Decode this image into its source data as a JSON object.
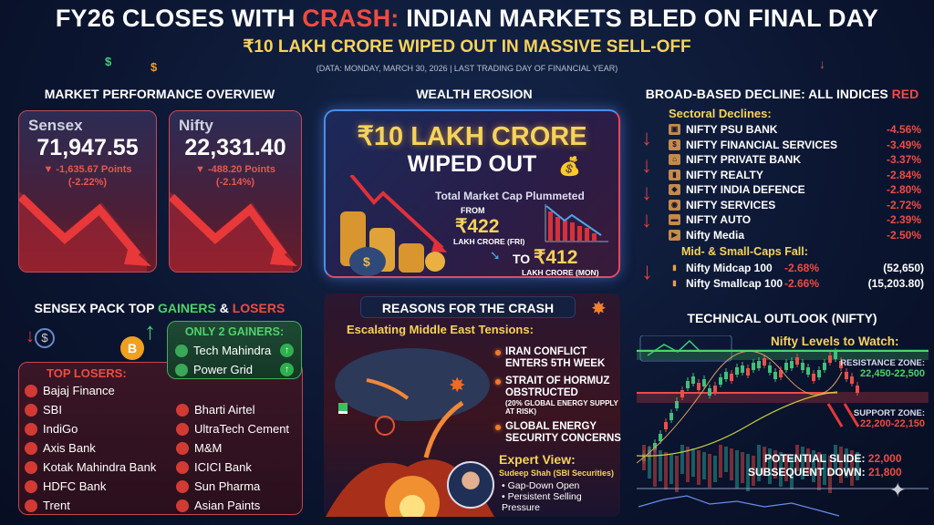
{
  "header": {
    "title_pre": "FY26 CLOSES WITH ",
    "title_hl": "CRASH:",
    "title_post": " INDIAN MARKETS BLED ON FINAL DAY",
    "subtitle": "₹10 LAKH CRORE WIPED OUT IN MASSIVE SELL-OFF",
    "note": "(DATA: MONDAY, MARCH 30, 2026 | LAST TRADING DAY OF FINANCIAL YEAR)"
  },
  "market": {
    "heading": "MARKET PERFORMANCE OVERVIEW",
    "cards": [
      {
        "name": "Sensex",
        "value": "71,947.55",
        "change": "▼ -1,635.67 Points",
        "pct": "(-2.22%)"
      },
      {
        "name": "Nifty",
        "value": "22,331.40",
        "change": "▼ -488.20 Points",
        "pct": "(-2.14%)"
      }
    ]
  },
  "wealth": {
    "heading": "WEALTH EROSION",
    "big1": "₹10 LAKH CRORE",
    "big2": "WIPED OUT",
    "caption": "Total Market Cap Plummeted",
    "from_label": "FROM",
    "from_value": "₹422",
    "from_unit": "LAKH CRORE (FRI)",
    "to_label": "TO",
    "to_value": "₹412",
    "to_unit": "LAKH CRORE (MON)"
  },
  "indices": {
    "heading_pre": "BROAD-BASED DECLINE: ALL INDICES ",
    "heading_hl": "RED",
    "sectoral_title": "Sectoral Declines:",
    "sectoral": [
      {
        "name": "NIFTY PSU BANK",
        "pct": "-4.56%"
      },
      {
        "name": "NIFTY FINANCIAL SERVICES",
        "pct": "-3.49%"
      },
      {
        "name": "NIFTY PRIVATE BANK",
        "pct": "-3.37%"
      },
      {
        "name": "NIFTY REALTY",
        "pct": "-2.84%"
      },
      {
        "name": "NIFTY INDIA DEFENCE",
        "pct": "-2.80%"
      },
      {
        "name": "NIFTY SERVICES",
        "pct": "-2.72%"
      },
      {
        "name": "NIFTY AUTO",
        "pct": "-2.39%"
      },
      {
        "name": "Nifty Media",
        "pct": "-2.50%"
      }
    ],
    "mid_title": "Mid- & Small-Caps Fall:",
    "mid": [
      {
        "name": "Nifty Midcap 100",
        "pct": "-2.68%",
        "level": "(52,650)"
      },
      {
        "name": "Nifty Smallcap 100",
        "pct": "-2.66%",
        "level": "(15,203.80)"
      }
    ]
  },
  "movers": {
    "heading_pre": "SENSEX PACK TOP ",
    "heading_g": "GAINERS",
    "heading_amp": " & ",
    "heading_l": "LOSERS",
    "gainers_title": "ONLY 2 GAINERS:",
    "gainers": [
      "Tech Mahindra",
      "Power Grid"
    ],
    "losers_title": "TOP LOSERS:",
    "losers_left": [
      "Bajaj Finance",
      "SBI",
      "IndiGo",
      "Axis Bank",
      "Kotak Mahindra Bank",
      "HDFC Bank",
      "Trent"
    ],
    "losers_right": [
      "Bharti Airtel",
      "UltraTech Cement",
      "M&M",
      "ICICI Bank",
      "Sun Pharma",
      "Asian Paints"
    ]
  },
  "reasons": {
    "heading": "REASONS FOR THE CRASH",
    "subtitle": "Escalating Middle East Tensions:",
    "bullets": [
      {
        "main": "IRAN CONFLICT ENTERS 5TH WEEK"
      },
      {
        "main": "STRAIT OF HORMUZ OBSTRUCTED",
        "sub": "(20% GLOBAL ENERGY SUPPLY AT RISK)"
      },
      {
        "main": "GLOBAL ENERGY SECURITY CONCERNS"
      }
    ],
    "expert_title": "Expert View:",
    "expert_name": "Sudeep Shah (SBI Securities)",
    "expert_points": [
      "Gap-Down Open",
      "Persistent Selling Pressure"
    ]
  },
  "technical": {
    "heading": "TECHNICAL OUTLOOK (NIFTY)",
    "subtitle": "Nifty Levels to Watch:",
    "resistance_label": "RESISTANCE ZONE:",
    "resistance": "22,450-22,500",
    "support_label": "SUPPORT ZONE:",
    "support": "22,200-22,150",
    "slide_label": "POTENTIAL SLIDE:",
    "slide": "22,000",
    "down_label": "SUBSEQUENT DOWN:",
    "down": "21,800"
  },
  "colors": {
    "red": "#ef4b43",
    "green": "#4fd16b",
    "yellow": "#f6d35b"
  }
}
